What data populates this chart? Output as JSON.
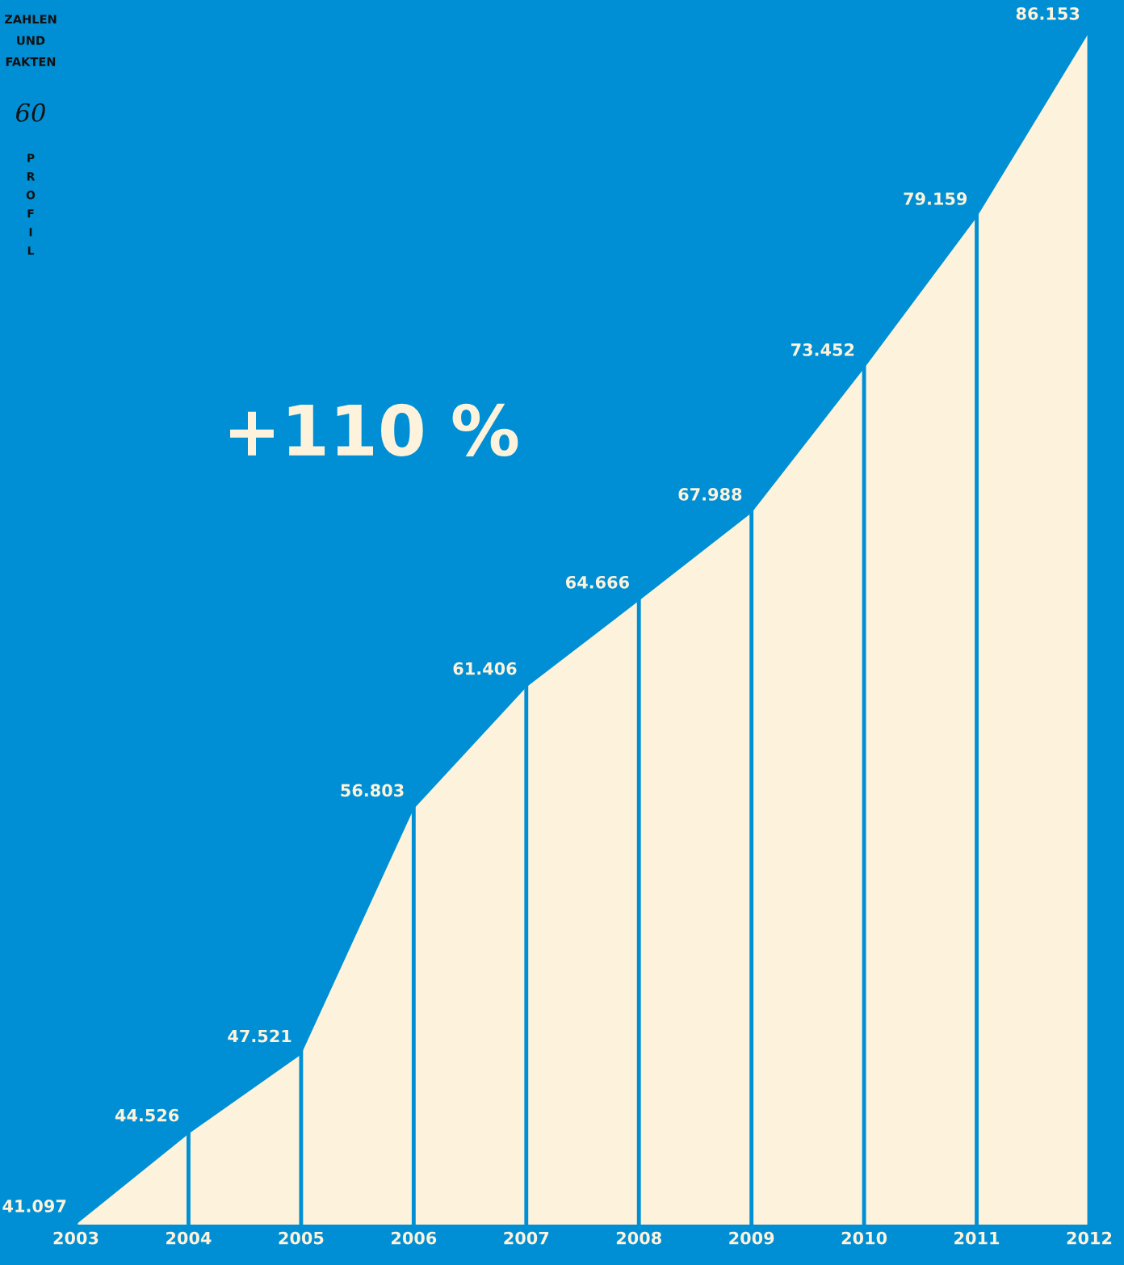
{
  "chart_data": {
    "type": "area",
    "categories": [
      "2003",
      "2004",
      "2005",
      "2006",
      "2007",
      "2008",
      "2009",
      "2010",
      "2011",
      "2012"
    ],
    "values": [
      41097,
      44526,
      47521,
      56803,
      61406,
      64666,
      67988,
      73452,
      79159,
      86153
    ],
    "value_labels": [
      "41.097",
      "44.526",
      "47.521",
      "56.803",
      "61.406",
      "64.666",
      "67.988",
      "73.452",
      "79.159",
      "86.153"
    ],
    "color": "#fdf3dc",
    "ylim": [
      41097,
      87370
    ],
    "grid": "x",
    "tick_labels": "x",
    "annotations": [
      "ZAHLEN\nUND\nFAKTEN",
      "60",
      "PROFIL",
      "+110 %"
    ]
  }
}
